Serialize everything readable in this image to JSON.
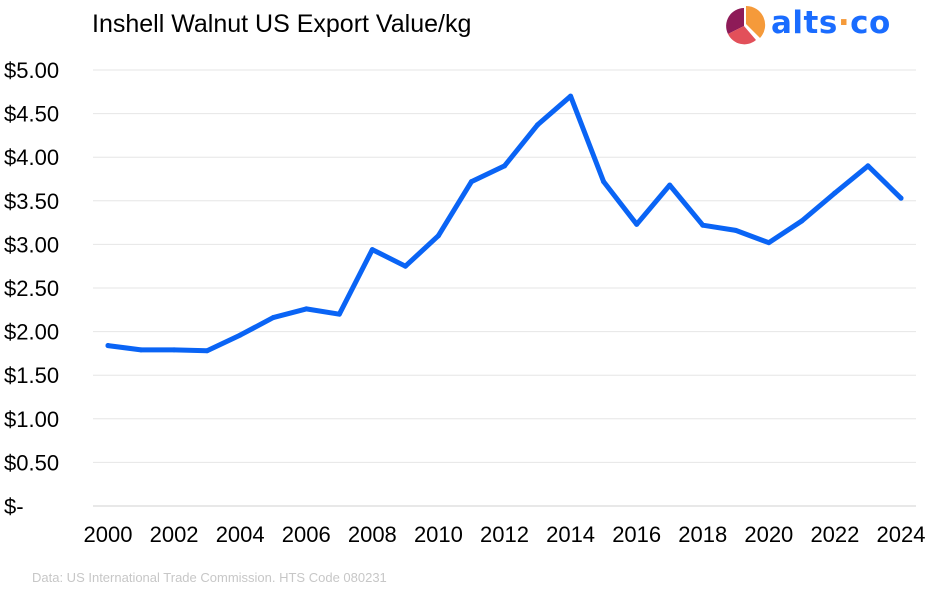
{
  "header": {
    "title": "Inshell Walnut US Export Value/kg"
  },
  "logo": {
    "text_main": "alts",
    "text_dot": "·",
    "text_tail": "co",
    "icon": "pie-chart-icon",
    "colors": [
      "#8e1b58",
      "#e2505a",
      "#f59a3a"
    ],
    "text_color": "#1a6cff"
  },
  "footer": {
    "source": "Data: US International Trade Commission. HTS Code 080231"
  },
  "chart_data": {
    "type": "line",
    "x": [
      2000,
      2001,
      2002,
      2003,
      2004,
      2005,
      2006,
      2007,
      2008,
      2009,
      2010,
      2011,
      2012,
      2013,
      2014,
      2015,
      2016,
      2017,
      2018,
      2019,
      2020,
      2021,
      2022,
      2023,
      2024
    ],
    "series": [
      {
        "values": [
          1.84,
          1.79,
          1.79,
          1.78,
          1.96,
          2.16,
          2.26,
          2.2,
          2.94,
          2.75,
          3.1,
          3.72,
          3.9,
          4.37,
          4.7,
          3.72,
          3.23,
          3.68,
          3.22,
          3.16,
          3.02,
          3.27,
          3.59,
          3.9,
          3.53
        ],
        "color": "#0a64f5"
      }
    ],
    "xticks": [
      "2000",
      "2002",
      "2004",
      "2006",
      "2008",
      "2010",
      "2012",
      "2014",
      "2016",
      "2018",
      "2020",
      "2022",
      "2024"
    ],
    "yticks": [
      {
        "value": 5.0,
        "label": "$5.00"
      },
      {
        "value": 4.5,
        "label": "$4.50"
      },
      {
        "value": 4.0,
        "label": "$4.00"
      },
      {
        "value": 3.5,
        "label": "$3.50"
      },
      {
        "value": 3.0,
        "label": "$3.00"
      },
      {
        "value": 2.5,
        "label": "$2.50"
      },
      {
        "value": 2.0,
        "label": "$2.00"
      },
      {
        "value": 1.5,
        "label": "$1.50"
      },
      {
        "value": 1.0,
        "label": "$1.00"
      },
      {
        "value": 0.5,
        "label": "$0.50"
      },
      {
        "value": 0.0,
        "label": "$-"
      }
    ],
    "xlim": [
      2000,
      2024
    ],
    "ylim": [
      0,
      5
    ],
    "grid": true,
    "grid_color": "#e6e6e6"
  }
}
